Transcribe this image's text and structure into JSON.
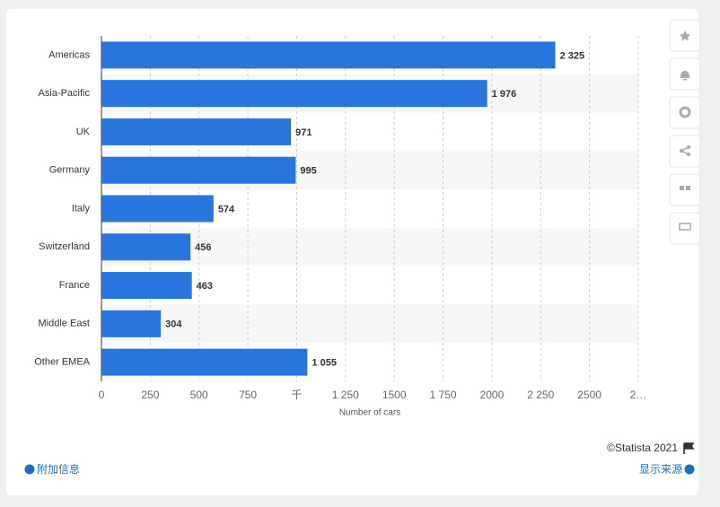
{
  "chart_data": {
    "type": "bar",
    "orientation": "horizontal",
    "categories": [
      "Americas",
      "Asia-Pacific",
      "UK",
      "Germany",
      "Italy",
      "Switzerland",
      "France",
      "Middle East",
      "Other EMEA"
    ],
    "values": [
      2325,
      1976,
      971,
      995,
      574,
      456,
      463,
      304,
      1055
    ],
    "value_labels": [
      "2 325",
      "1 976",
      "971",
      "995",
      "574",
      "456",
      "463",
      "304",
      "1 055"
    ],
    "color": "#2876dd",
    "xlabel": "Number of cars",
    "xlim": [
      0,
      2750
    ],
    "xticks": [
      0,
      250,
      500,
      750,
      {
        "value": 1000,
        "label": "千"
      },
      {
        "value": 1250,
        "label": "1 250"
      },
      1500,
      {
        "value": 1750,
        "label": "1 750"
      },
      2000,
      {
        "value": 2250,
        "label": "2 250"
      },
      2500,
      {
        "value": 2750,
        "label": "2…"
      }
    ],
    "grid": true,
    "source": "©Statista 2021"
  },
  "footer": {
    "additional_info": "附加信息",
    "show_source": "显示来源"
  }
}
